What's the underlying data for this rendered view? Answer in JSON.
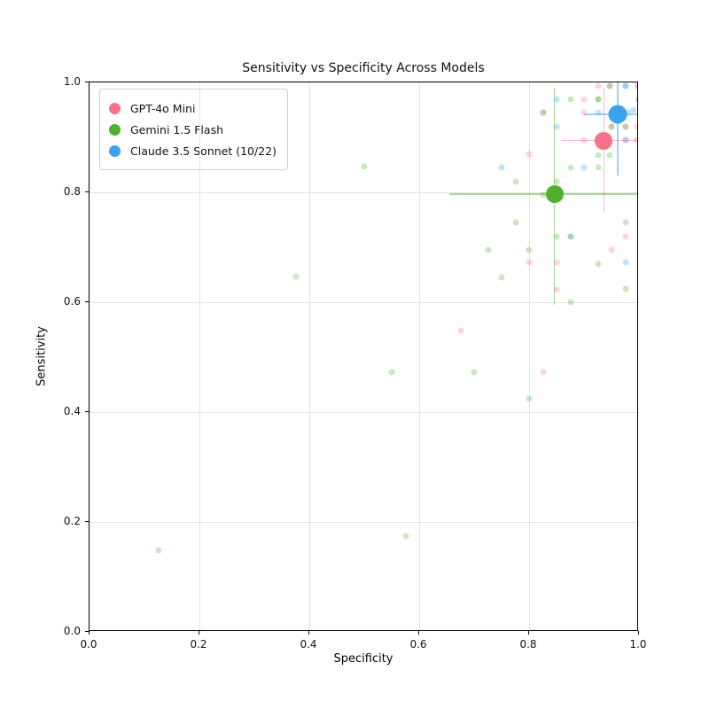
{
  "title": "Sensitivity vs Specificity Across Models",
  "axes": {
    "xlabel": "Specificity",
    "ylabel": "Sensitivity",
    "xticks": [
      "0.0",
      "0.2",
      "0.4",
      "0.6",
      "0.8",
      "1.0"
    ],
    "yticks": [
      "0.0",
      "0.2",
      "0.4",
      "0.6",
      "0.8",
      "1.0"
    ],
    "xlim": [
      0,
      1
    ],
    "ylim": [
      0,
      1
    ],
    "grid": true
  },
  "legend": {
    "items": [
      {
        "label": "GPT-4o Mini",
        "color": "#f77189"
      },
      {
        "label": "Gemini 1.5 Flash",
        "color": "#50b131"
      },
      {
        "label": "Claude 3.5 Sonnet (10/22)",
        "color": "#3ba3ec"
      }
    ]
  },
  "chart_data": {
    "type": "scatter",
    "title": "Sensitivity vs Specificity Across Models",
    "xlabel": "Specificity",
    "ylabel": "Sensitivity",
    "xlim": [
      0,
      1
    ],
    "ylim": [
      0,
      1
    ],
    "grid": true,
    "legend_position": "upper left",
    "series": [
      {
        "name": "GPT-4o Mini",
        "slug": "gpt-4o-mini",
        "color": "#f77189",
        "mean": {
          "x": 0.936,
          "y": 0.894,
          "xerr": [
            0.86,
            1.0
          ],
          "yerr": [
            0.765,
            0.99
          ],
          "size": 20
        },
        "points": [
          [
            0.675,
            0.548
          ],
          [
            0.825,
            0.473
          ],
          [
            0.8,
            0.672
          ],
          [
            0.85,
            0.672
          ],
          [
            0.8,
            0.87
          ],
          [
            0.85,
            0.622
          ],
          [
            0.95,
            0.695
          ],
          [
            0.975,
            0.72
          ],
          [
            0.9,
            0.895
          ],
          [
            0.975,
            0.895
          ],
          [
            0.995,
            0.895
          ],
          [
            0.95,
            0.92
          ],
          [
            0.975,
            0.92
          ],
          [
            0.997,
            0.92
          ],
          [
            0.825,
            0.945
          ],
          [
            0.9,
            0.945
          ],
          [
            0.9,
            0.97
          ],
          [
            1.0,
            0.97
          ],
          [
            0.925,
            0.993
          ],
          [
            0.9475,
            0.993
          ],
          [
            0.9975,
            0.993
          ]
        ]
      },
      {
        "name": "Gemini 1.5 Flash",
        "slug": "gemini-1-5-flash",
        "color": "#50b131",
        "mean": {
          "x": 0.846,
          "y": 0.797,
          "xerr": [
            0.655,
            1.0
          ],
          "yerr": [
            0.595,
            0.99
          ],
          "size": 20
        },
        "points": [
          [
            0.125,
            0.148
          ],
          [
            0.575,
            0.175
          ],
          [
            0.375,
            0.647
          ],
          [
            0.5,
            0.847
          ],
          [
            0.55,
            0.473
          ],
          [
            0.7,
            0.473
          ],
          [
            0.725,
            0.695
          ],
          [
            0.75,
            0.645
          ],
          [
            0.8,
            0.695
          ],
          [
            0.875,
            0.6
          ],
          [
            0.85,
            0.72
          ],
          [
            0.875,
            0.72
          ],
          [
            0.925,
            0.67
          ],
          [
            0.975,
            0.625
          ],
          [
            0.975,
            0.745
          ],
          [
            0.775,
            0.745
          ],
          [
            0.775,
            0.82
          ],
          [
            0.825,
            0.795
          ],
          [
            0.85,
            0.82
          ],
          [
            0.875,
            0.845
          ],
          [
            0.925,
            0.845
          ],
          [
            0.925,
            0.8675
          ],
          [
            0.9475,
            0.8675
          ],
          [
            0.825,
            0.945
          ],
          [
            0.95,
            0.92
          ],
          [
            0.975,
            0.92
          ],
          [
            0.875,
            0.97
          ],
          [
            0.925,
            0.97
          ],
          [
            0.925,
            0.97
          ],
          [
            0.9475,
            0.993
          ]
        ]
      },
      {
        "name": "Claude 3.5 Sonnet (10/22)",
        "slug": "claude-3-5-sonnet",
        "color": "#3ba3ec",
        "mean": {
          "x": 0.961,
          "y": 0.942,
          "xerr": [
            0.9,
            1.0
          ],
          "yerr": [
            0.83,
            1.0
          ],
          "size": 21
        },
        "points": [
          [
            0.8,
            0.425
          ],
          [
            0.875,
            0.72
          ],
          [
            0.975,
            0.672
          ],
          [
            0.75,
            0.845
          ],
          [
            0.9,
            0.845
          ],
          [
            0.85,
            0.92
          ],
          [
            0.975,
            0.895
          ],
          [
            0.925,
            0.945
          ],
          [
            0.98,
            0.945
          ],
          [
            0.99,
            0.95
          ],
          [
            0.85,
            0.97
          ],
          [
            1.0,
            0.97
          ],
          [
            0.975,
            0.993
          ],
          [
            0.975,
            0.993
          ],
          [
            1.0,
            0.993
          ]
        ]
      }
    ]
  }
}
